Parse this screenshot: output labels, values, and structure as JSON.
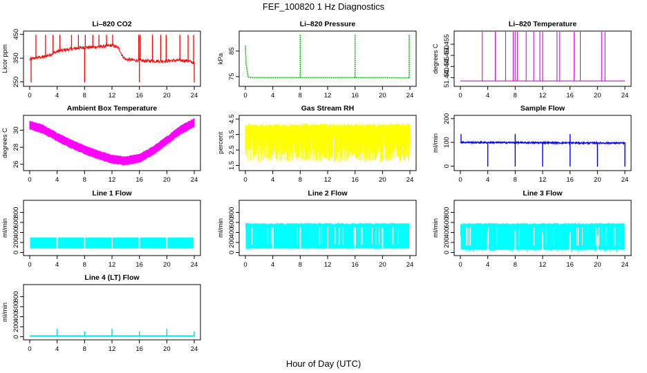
{
  "figure": {
    "title": "FEF_100820  1 Hz Diagnostics",
    "xlabel": "Hour of Day (UTC)"
  },
  "chart_data": [
    {
      "type": "line",
      "title": "Li–820 CO2",
      "ylabel": "Licor ppm",
      "xlim": [
        0,
        24
      ],
      "ylim": [
        240,
        455
      ],
      "yticks": [
        250,
        350,
        450
      ],
      "ytick_labels": [
        "250",
        "350",
        "450"
      ],
      "xticks": [
        0,
        4,
        8,
        12,
        16,
        20,
        24
      ],
      "xtick_labels": [
        "0",
        "4",
        "8",
        "12",
        "16",
        "20",
        "24"
      ],
      "color": "#ff0000",
      "series": [
        {
          "x": [
            0,
            0.5,
            1,
            2,
            3,
            4,
            5,
            6,
            7,
            8,
            9,
            10,
            11,
            12,
            13,
            13.5,
            14,
            15,
            16,
            17,
            18,
            19,
            20,
            21,
            22,
            23,
            24
          ],
          "y": [
            345,
            348,
            352,
            355,
            365,
            378,
            384,
            388,
            392,
            395,
            396,
            398,
            400,
            404,
            392,
            360,
            345,
            342,
            340,
            338,
            338,
            338,
            338,
            340,
            340,
            339,
            330
          ]
        }
      ],
      "spikes_up": [
        0.9,
        2.3,
        3.4,
        4.4,
        6.1,
        7.1,
        8.1,
        9.2,
        10.1,
        11.2,
        12.1,
        15.9,
        16.1,
        17.9,
        19.1,
        19.9,
        21.9,
        23.1,
        23.9
      ],
      "spikes_down": [
        0.2,
        8.0,
        16.0,
        24.0
      ]
    },
    {
      "type": "line",
      "title": "Li–820 Pressure",
      "ylabel": "kPa",
      "xlim": [
        0,
        24
      ],
      "ylim": [
        72,
        92
      ],
      "yticks": [
        75,
        85
      ],
      "ytick_labels": [
        "75",
        "85"
      ],
      "xticks": [
        0,
        4,
        8,
        12,
        16,
        20,
        24
      ],
      "xtick_labels": [
        "0",
        "4",
        "8",
        "12",
        "16",
        "20",
        "24"
      ],
      "color": "#00b000",
      "series": [
        {
          "x": [
            0,
            0.1,
            0.4,
            1,
            4,
            8,
            12,
            16,
            20,
            24
          ],
          "y": [
            87,
            80,
            74.8,
            74.6,
            74.6,
            74.6,
            74.6,
            74.6,
            74.6,
            74.5
          ]
        }
      ],
      "spikes_up": [
        8.0,
        16.0,
        23.9
      ]
    },
    {
      "type": "line",
      "title": "Li–820 Temperature",
      "ylabel": "degrees C",
      "xlim": [
        0,
        24
      ],
      "ylim": [
        51.437,
        51.46
      ],
      "yticks": [
        51.44,
        51.445,
        51.45,
        51.455
      ],
      "ytick_labels": [
        "51.440",
        "51.445",
        "51.450",
        "51.455"
      ],
      "xticks": [
        0,
        4,
        8,
        12,
        16,
        20,
        24
      ],
      "xtick_labels": [
        "0",
        "4",
        "8",
        "12",
        "16",
        "20",
        "24"
      ],
      "color": "#e000e0",
      "series": [
        {
          "x": [
            0,
            24
          ],
          "y": [
            51.4385,
            51.4385
          ]
        }
      ],
      "spikes_up": [
        3.2,
        5.1,
        6.6,
        7.7,
        8.0,
        8.3,
        9.6,
        10.7,
        11.6,
        12.0,
        14.1,
        14.5,
        16.6,
        17.5,
        20.6,
        21.1
      ]
    },
    {
      "type": "line",
      "title": "Ambient Box Temperature",
      "ylabel": "degrees C",
      "xlim": [
        0,
        24
      ],
      "ylim": [
        25.5,
        31.5
      ],
      "yticks": [
        26,
        28,
        30
      ],
      "ytick_labels": [
        "26",
        "28",
        "30"
      ],
      "xticks": [
        0,
        4,
        8,
        12,
        16,
        20,
        24
      ],
      "xtick_labels": [
        "0",
        "4",
        "8",
        "12",
        "16",
        "20",
        "24"
      ],
      "color": "#ff00ff",
      "series": [
        {
          "x": [
            0,
            2,
            4,
            6,
            8,
            10,
            12,
            14,
            16,
            18,
            20,
            22,
            24
          ],
          "y": [
            30.6,
            30.1,
            29.2,
            28.4,
            27.7,
            27.1,
            26.6,
            26.4,
            26.7,
            27.6,
            28.8,
            30.0,
            30.9
          ]
        }
      ]
    },
    {
      "type": "line",
      "title": "Gas Stream RH",
      "ylabel": "percent",
      "xlim": [
        0,
        24
      ],
      "ylim": [
        1.3,
        4.6
      ],
      "yticks": [
        1.5,
        2.5,
        3.5,
        4.5
      ],
      "ytick_labels": [
        "1.5",
        "2.5",
        "3.5",
        "4.5"
      ],
      "xticks": [
        0,
        4,
        8,
        12,
        16,
        20,
        24
      ],
      "xtick_labels": [
        "0",
        "4",
        "8",
        "12",
        "16",
        "20",
        "24"
      ],
      "color": "#ffff00",
      "series": [
        {
          "name": "upper",
          "x": [
            0,
            24
          ],
          "y": [
            4.2,
            4.2
          ]
        },
        {
          "name": "lower",
          "x": [
            0,
            24
          ],
          "y": [
            1.7,
            1.7
          ]
        }
      ]
    },
    {
      "type": "line",
      "title": "Sample Flow",
      "ylabel": "ml/min",
      "xlim": [
        0,
        24
      ],
      "ylim": [
        -10,
        205
      ],
      "yticks": [
        0,
        100,
        200
      ],
      "ytick_labels": [
        "0",
        "100",
        "200"
      ],
      "xticks": [
        0,
        4,
        8,
        12,
        16,
        20,
        24
      ],
      "xtick_labels": [
        "0",
        "4",
        "8",
        "12",
        "16",
        "20",
        "24"
      ],
      "color": "#0000ff",
      "series": [
        {
          "x": [
            0,
            24
          ],
          "y": [
            100,
            97
          ]
        }
      ],
      "spikes_up": [
        0.1,
        8.0,
        16.0
      ],
      "spikes_down": [
        4.0,
        8.0,
        12.0,
        16.0,
        20.0,
        24.0
      ]
    },
    {
      "type": "area",
      "title": "Line 1 Flow",
      "ylabel": "ml/min",
      "xlim": [
        0,
        24
      ],
      "ylim": [
        -20,
        1000
      ],
      "yticks": [
        0,
        200,
        400,
        600,
        800
      ],
      "ytick_labels": [
        "0",
        "200",
        "400",
        "600",
        "800"
      ],
      "xticks": [
        0,
        4,
        8,
        12,
        16,
        20,
        24
      ],
      "xtick_labels": [
        "0",
        "4",
        "8",
        "12",
        "16",
        "20",
        "24"
      ],
      "color": "#00ffff",
      "series": [
        {
          "name": "upper",
          "x": [
            0,
            24
          ],
          "y": [
            300,
            300
          ]
        },
        {
          "name": "lower",
          "x": [
            0,
            24
          ],
          "y": [
            80,
            80
          ]
        }
      ]
    },
    {
      "type": "area",
      "title": "Line 2 Flow",
      "ylabel": "ml/min",
      "xlim": [
        0,
        24
      ],
      "ylim": [
        -20,
        1000
      ],
      "yticks": [
        0,
        200,
        400,
        600,
        800
      ],
      "ytick_labels": [
        "0",
        "200",
        "400",
        "600",
        "800"
      ],
      "xticks": [
        0,
        4,
        8,
        12,
        16,
        20,
        24
      ],
      "xtick_labels": [
        "0",
        "4",
        "8",
        "12",
        "16",
        "20",
        "24"
      ],
      "color": "#00ffff",
      "series": [
        {
          "name": "upper",
          "x": [
            0,
            24
          ],
          "y": [
            560,
            560
          ]
        },
        {
          "name": "lower",
          "x": [
            0,
            24
          ],
          "y": [
            80,
            80
          ]
        }
      ]
    },
    {
      "type": "area",
      "title": "Line 3 Flow",
      "ylabel": "ml/min",
      "xlim": [
        0,
        24
      ],
      "ylim": [
        -20,
        1000
      ],
      "yticks": [
        0,
        200,
        400,
        600,
        800
      ],
      "ytick_labels": [
        "0",
        "200",
        "400",
        "600",
        "800"
      ],
      "xticks": [
        0,
        4,
        8,
        12,
        16,
        20,
        24
      ],
      "xtick_labels": [
        "0",
        "4",
        "8",
        "12",
        "16",
        "20",
        "24"
      ],
      "color": "#00ffff",
      "series": [
        {
          "name": "upper",
          "x": [
            0,
            24
          ],
          "y": [
            560,
            560
          ]
        },
        {
          "name": "lower",
          "x": [
            0,
            24
          ],
          "y": [
            60,
            60
          ]
        }
      ]
    },
    {
      "type": "line",
      "title": "Line 4 (LT) Flow",
      "ylabel": "ml/min",
      "xlim": [
        0,
        24
      ],
      "ylim": [
        -20,
        1000
      ],
      "yticks": [
        0,
        200,
        400,
        600,
        800
      ],
      "ytick_labels": [
        "0",
        "200",
        "400",
        "600",
        "800"
      ],
      "xticks": [
        0,
        4,
        8,
        12,
        16,
        20,
        24
      ],
      "xtick_labels": [
        "0",
        "4",
        "8",
        "12",
        "16",
        "20",
        "24"
      ],
      "color": "#00e0e0",
      "series": [
        {
          "x": [
            0,
            24
          ],
          "y": [
            15,
            15
          ]
        }
      ],
      "spikes_up": [
        4.0,
        8.0,
        12.0,
        16.0,
        20.0,
        24.0
      ]
    }
  ]
}
